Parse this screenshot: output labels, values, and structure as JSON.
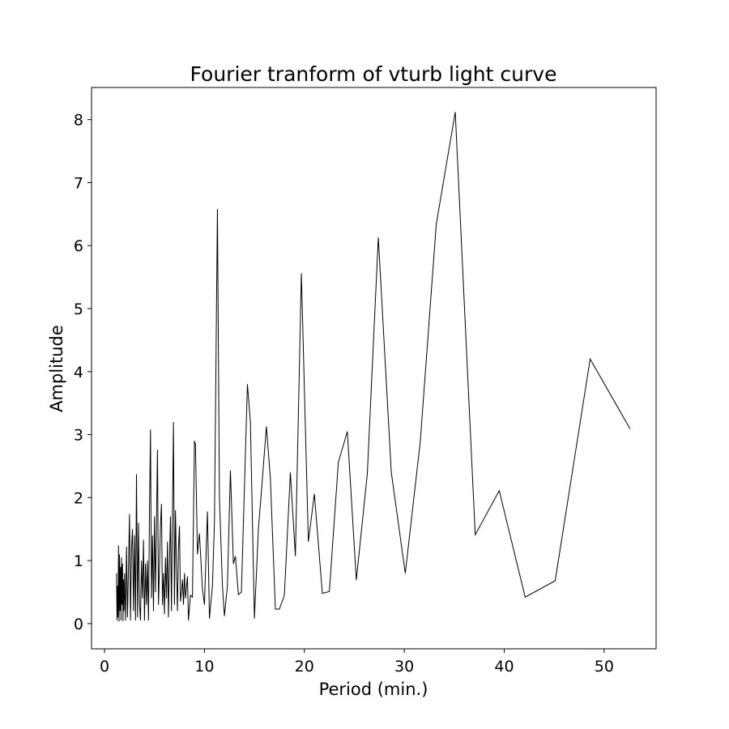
{
  "chart_data": {
    "type": "line",
    "title": "Fourier tranform of vturb light curve",
    "x_label": "Period (min.)",
    "y_label": "Amplitude",
    "color": "#000000",
    "x": [
      1.2,
      1.25,
      1.3,
      1.35,
      1.4,
      1.45,
      1.5,
      1.55,
      1.6,
      1.65,
      1.7,
      1.75,
      1.8,
      1.85,
      1.9,
      1.95,
      2.0,
      2.1,
      2.2,
      2.3,
      2.4,
      2.5,
      2.6,
      2.7,
      2.8,
      2.9,
      3.0,
      3.1,
      3.2,
      3.3,
      3.4,
      3.5,
      3.6,
      3.7,
      3.8,
      3.9,
      4.0,
      4.1,
      4.2,
      4.3,
      4.4,
      4.5,
      4.6,
      4.7,
      4.8,
      4.9,
      5.0,
      5.1,
      5.2,
      5.3,
      5.4,
      5.5,
      5.6,
      5.7,
      5.8,
      5.9,
      6.0,
      6.1,
      6.2,
      6.3,
      6.4,
      6.5,
      6.6,
      6.7,
      6.8,
      6.9,
      7.0,
      7.1,
      7.2,
      7.3,
      7.4,
      7.5,
      7.6,
      7.7,
      7.8,
      7.9,
      8.0,
      8.1,
      8.3,
      8.4,
      8.6,
      8.8,
      9.0,
      9.1,
      9.3,
      9.5,
      9.8,
      10.0,
      10.3,
      10.5,
      10.8,
      11.0,
      11.3,
      11.5,
      11.8,
      12.0,
      12.3,
      12.6,
      12.9,
      13.1,
      13.4,
      13.7,
      14.3,
      14.6,
      15.0,
      15.4,
      15.8,
      16.2,
      16.6,
      17.1,
      17.5,
      18.0,
      18.6,
      19.1,
      19.7,
      20.4,
      21.0,
      21.8,
      22.5,
      23.4,
      24.3,
      25.2,
      26.3,
      27.4,
      28.7,
      30.1,
      31.6,
      33.2,
      35.1,
      37.1,
      39.5,
      42.1,
      45.1,
      48.6,
      52.6
    ],
    "values": [
      0.8,
      0.05,
      0.6,
      0.1,
      1.24,
      0.03,
      1.1,
      0.2,
      0.9,
      0.05,
      1.05,
      0.3,
      0.95,
      0.04,
      0.7,
      0.2,
      0.8,
      0.05,
      1.22,
      0.1,
      0.9,
      1.74,
      0.05,
      1.2,
      1.5,
      0.2,
      1.4,
      0.05,
      2.37,
      0.1,
      1.6,
      0.3,
      0.05,
      1.0,
      0.4,
      1.33,
      0.05,
      0.95,
      0.3,
      1.0,
      0.05,
      1.8,
      3.08,
      0.4,
      1.4,
      0.2,
      1.7,
      0.5,
      1.6,
      2.76,
      0.3,
      0.9,
      1.55,
      1.9,
      0.3,
      0.8,
      0.15,
      1.05,
      0.4,
      1.3,
      0.1,
      1.0,
      1.7,
      0.2,
      1.7,
      3.2,
      0.3,
      1.8,
      0.9,
      0.2,
      1.2,
      1.55,
      0.35,
      0.5,
      0.7,
      0.3,
      0.8,
      0.4,
      0.75,
      0.05,
      0.45,
      0.42,
      2.9,
      2.85,
      1.1,
      1.43,
      0.55,
      0.3,
      1.78,
      0.08,
      0.6,
      1.6,
      6.58,
      2.0,
      0.6,
      0.12,
      0.6,
      2.43,
      0.95,
      1.07,
      0.46,
      0.5,
      3.8,
      3.2,
      0.08,
      1.5,
      2.3,
      3.13,
      2.3,
      0.23,
      0.23,
      0.45,
      2.4,
      1.07,
      5.56,
      1.3,
      2.06,
      0.48,
      0.51,
      2.56,
      3.05,
      0.69,
      2.38,
      6.13,
      2.4,
      0.8,
      2.89,
      6.34,
      8.12,
      1.41,
      2.11,
      0.42,
      0.68,
      4.2,
      3.09
    ],
    "xlim": [
      -1.3,
      55.2
    ],
    "ylim": [
      -0.4,
      8.51
    ],
    "xticks": [
      0,
      10,
      20,
      30,
      40,
      50
    ],
    "yticks": [
      0,
      1,
      2,
      3,
      4,
      5,
      6,
      7,
      8
    ]
  }
}
